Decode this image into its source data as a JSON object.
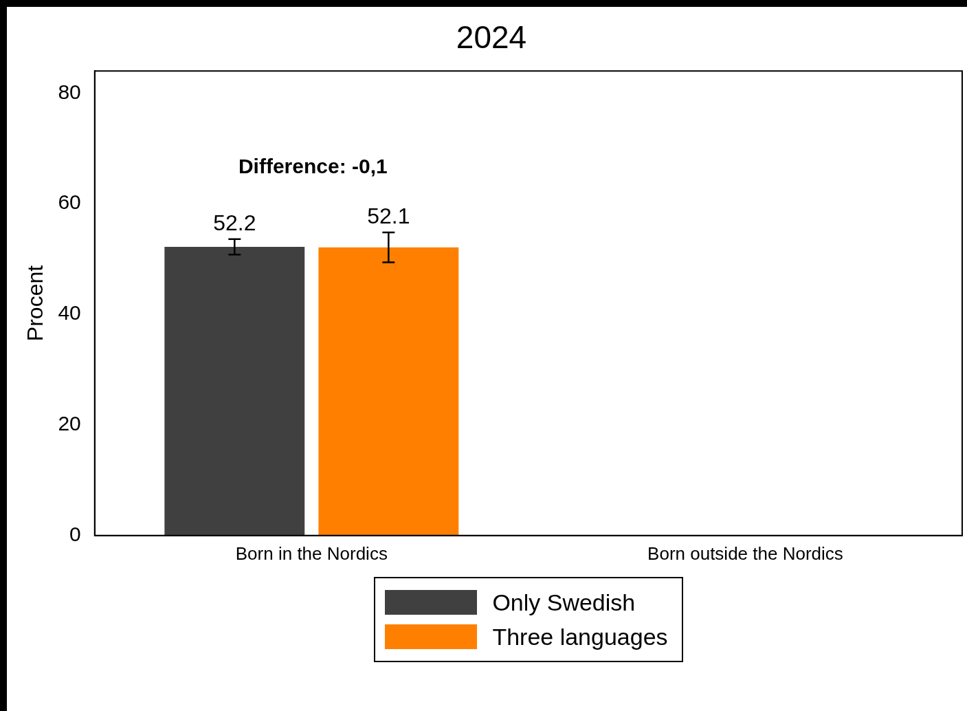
{
  "chart_data": {
    "type": "bar",
    "title": "2024",
    "ylabel": "Procent",
    "categories": [
      "Born in the Nordics",
      "Born outside the Nordics"
    ],
    "series": [
      {
        "name": "Only Swedish",
        "color": "#404040",
        "values": [
          52.2,
          0
        ],
        "errors": [
          1.4,
          null
        ],
        "value_labels": [
          "52.2",
          null
        ]
      },
      {
        "name": "Three languages",
        "color": "#ff8000",
        "values": [
          52.1,
          0
        ],
        "errors": [
          2.7,
          null
        ],
        "value_labels": [
          "52.1",
          null
        ]
      }
    ],
    "ylim": [
      0,
      84
    ],
    "yticks": [
      0,
      20,
      40,
      60,
      80
    ],
    "grid": false,
    "legend": "bottom",
    "annotations": [
      "Difference: -0,1"
    ]
  }
}
